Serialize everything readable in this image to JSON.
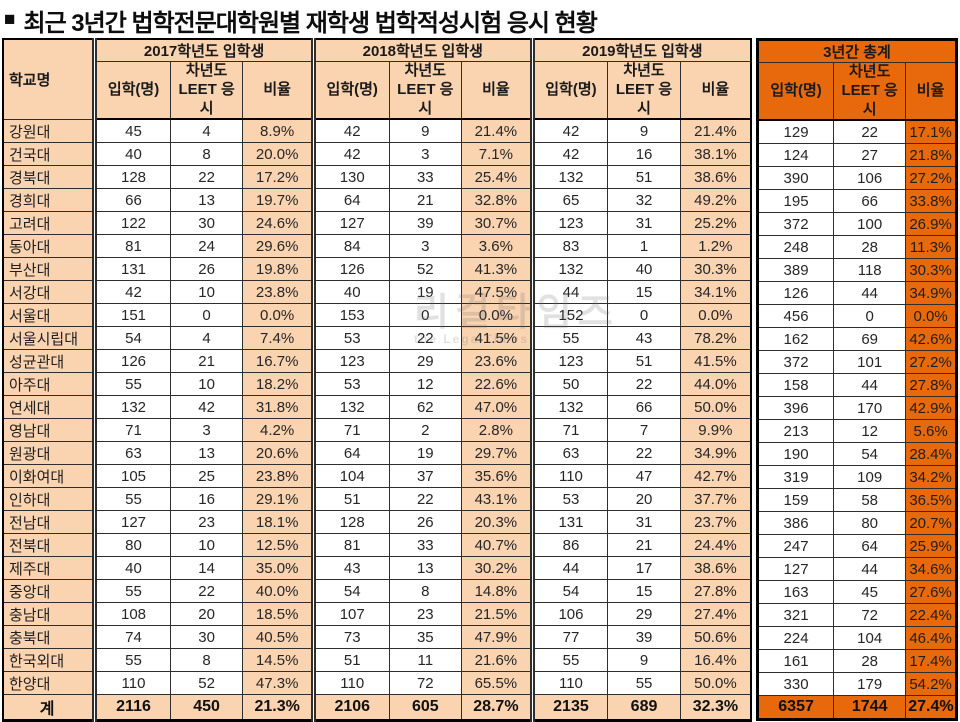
{
  "title": {
    "bullet": "■",
    "text": "최근 3년간 법학전문대학원별 재학생 법학적성시험 응시 현황"
  },
  "colors": {
    "peach": "#FAD3B0",
    "orange": "#E8690B",
    "grid": "#2e2e2e"
  },
  "watermark": {
    "text": "리걸타임즈",
    "subtext": "the LegalTimes"
  },
  "table": {
    "school_col_header": "학교명",
    "sections": [
      {
        "label": "2017학년도 입학생",
        "subheaders": [
          "입학(명)",
          "차년도 LEET 응시",
          "비율"
        ]
      },
      {
        "label": "2018학년도 입학생",
        "subheaders": [
          "입학(명)",
          "차년도 LEET 응시",
          "비율"
        ]
      },
      {
        "label": "2019학년도 입학생",
        "subheaders": [
          "입학(명)",
          "차년도 LEET 응시",
          "비율"
        ]
      },
      {
        "label": "3년간 총계",
        "subheaders": [
          "입학(명)",
          "차년도 LEET 응시",
          "비율"
        ]
      }
    ],
    "rows": [
      {
        "school": "강원대",
        "y2017": [
          "45",
          "4",
          "8.9%"
        ],
        "y2018": [
          "42",
          "9",
          "21.4%"
        ],
        "y2019": [
          "42",
          "9",
          "21.4%"
        ],
        "total": [
          "129",
          "22",
          "17.1%"
        ]
      },
      {
        "school": "건국대",
        "y2017": [
          "40",
          "8",
          "20.0%"
        ],
        "y2018": [
          "42",
          "3",
          "7.1%"
        ],
        "y2019": [
          "42",
          "16",
          "38.1%"
        ],
        "total": [
          "124",
          "27",
          "21.8%"
        ]
      },
      {
        "school": "경북대",
        "y2017": [
          "128",
          "22",
          "17.2%"
        ],
        "y2018": [
          "130",
          "33",
          "25.4%"
        ],
        "y2019": [
          "132",
          "51",
          "38.6%"
        ],
        "total": [
          "390",
          "106",
          "27.2%"
        ]
      },
      {
        "school": "경희대",
        "y2017": [
          "66",
          "13",
          "19.7%"
        ],
        "y2018": [
          "64",
          "21",
          "32.8%"
        ],
        "y2019": [
          "65",
          "32",
          "49.2%"
        ],
        "total": [
          "195",
          "66",
          "33.8%"
        ]
      },
      {
        "school": "고려대",
        "y2017": [
          "122",
          "30",
          "24.6%"
        ],
        "y2018": [
          "127",
          "39",
          "30.7%"
        ],
        "y2019": [
          "123",
          "31",
          "25.2%"
        ],
        "total": [
          "372",
          "100",
          "26.9%"
        ]
      },
      {
        "school": "동아대",
        "y2017": [
          "81",
          "24",
          "29.6%"
        ],
        "y2018": [
          "84",
          "3",
          "3.6%"
        ],
        "y2019": [
          "83",
          "1",
          "1.2%"
        ],
        "total": [
          "248",
          "28",
          "11.3%"
        ]
      },
      {
        "school": "부산대",
        "y2017": [
          "131",
          "26",
          "19.8%"
        ],
        "y2018": [
          "126",
          "52",
          "41.3%"
        ],
        "y2019": [
          "132",
          "40",
          "30.3%"
        ],
        "total": [
          "389",
          "118",
          "30.3%"
        ]
      },
      {
        "school": "서강대",
        "y2017": [
          "42",
          "10",
          "23.8%"
        ],
        "y2018": [
          "40",
          "19",
          "47.5%"
        ],
        "y2019": [
          "44",
          "15",
          "34.1%"
        ],
        "total": [
          "126",
          "44",
          "34.9%"
        ]
      },
      {
        "school": "서울대",
        "y2017": [
          "151",
          "0",
          "0.0%"
        ],
        "y2018": [
          "153",
          "0",
          "0.0%"
        ],
        "y2019": [
          "152",
          "0",
          "0.0%"
        ],
        "total": [
          "456",
          "0",
          "0.0%"
        ]
      },
      {
        "school": "서울시립대",
        "y2017": [
          "54",
          "4",
          "7.4%"
        ],
        "y2018": [
          "53",
          "22",
          "41.5%"
        ],
        "y2019": [
          "55",
          "43",
          "78.2%"
        ],
        "total": [
          "162",
          "69",
          "42.6%"
        ]
      },
      {
        "school": "성균관대",
        "y2017": [
          "126",
          "21",
          "16.7%"
        ],
        "y2018": [
          "123",
          "29",
          "23.6%"
        ],
        "y2019": [
          "123",
          "51",
          "41.5%"
        ],
        "total": [
          "372",
          "101",
          "27.2%"
        ]
      },
      {
        "school": "아주대",
        "y2017": [
          "55",
          "10",
          "18.2%"
        ],
        "y2018": [
          "53",
          "12",
          "22.6%"
        ],
        "y2019": [
          "50",
          "22",
          "44.0%"
        ],
        "total": [
          "158",
          "44",
          "27.8%"
        ]
      },
      {
        "school": "연세대",
        "y2017": [
          "132",
          "42",
          "31.8%"
        ],
        "y2018": [
          "132",
          "62",
          "47.0%"
        ],
        "y2019": [
          "132",
          "66",
          "50.0%"
        ],
        "total": [
          "396",
          "170",
          "42.9%"
        ]
      },
      {
        "school": "영남대",
        "y2017": [
          "71",
          "3",
          "4.2%"
        ],
        "y2018": [
          "71",
          "2",
          "2.8%"
        ],
        "y2019": [
          "71",
          "7",
          "9.9%"
        ],
        "total": [
          "213",
          "12",
          "5.6%"
        ]
      },
      {
        "school": "원광대",
        "y2017": [
          "63",
          "13",
          "20.6%"
        ],
        "y2018": [
          "64",
          "19",
          "29.7%"
        ],
        "y2019": [
          "63",
          "22",
          "34.9%"
        ],
        "total": [
          "190",
          "54",
          "28.4%"
        ]
      },
      {
        "school": "이화여대",
        "y2017": [
          "105",
          "25",
          "23.8%"
        ],
        "y2018": [
          "104",
          "37",
          "35.6%"
        ],
        "y2019": [
          "110",
          "47",
          "42.7%"
        ],
        "total": [
          "319",
          "109",
          "34.2%"
        ]
      },
      {
        "school": "인하대",
        "y2017": [
          "55",
          "16",
          "29.1%"
        ],
        "y2018": [
          "51",
          "22",
          "43.1%"
        ],
        "y2019": [
          "53",
          "20",
          "37.7%"
        ],
        "total": [
          "159",
          "58",
          "36.5%"
        ]
      },
      {
        "school": "전남대",
        "y2017": [
          "127",
          "23",
          "18.1%"
        ],
        "y2018": [
          "128",
          "26",
          "20.3%"
        ],
        "y2019": [
          "131",
          "31",
          "23.7%"
        ],
        "total": [
          "386",
          "80",
          "20.7%"
        ]
      },
      {
        "school": "전북대",
        "y2017": [
          "80",
          "10",
          "12.5%"
        ],
        "y2018": [
          "81",
          "33",
          "40.7%"
        ],
        "y2019": [
          "86",
          "21",
          "24.4%"
        ],
        "total": [
          "247",
          "64",
          "25.9%"
        ]
      },
      {
        "school": "제주대",
        "y2017": [
          "40",
          "14",
          "35.0%"
        ],
        "y2018": [
          "43",
          "13",
          "30.2%"
        ],
        "y2019": [
          "44",
          "17",
          "38.6%"
        ],
        "total": [
          "127",
          "44",
          "34.6%"
        ]
      },
      {
        "school": "중앙대",
        "y2017": [
          "55",
          "22",
          "40.0%"
        ],
        "y2018": [
          "54",
          "8",
          "14.8%"
        ],
        "y2019": [
          "54",
          "15",
          "27.8%"
        ],
        "total": [
          "163",
          "45",
          "27.6%"
        ]
      },
      {
        "school": "충남대",
        "y2017": [
          "108",
          "20",
          "18.5%"
        ],
        "y2018": [
          "107",
          "23",
          "21.5%"
        ],
        "y2019": [
          "106",
          "29",
          "27.4%"
        ],
        "total": [
          "321",
          "72",
          "22.4%"
        ]
      },
      {
        "school": "충북대",
        "y2017": [
          "74",
          "30",
          "40.5%"
        ],
        "y2018": [
          "73",
          "35",
          "47.9%"
        ],
        "y2019": [
          "77",
          "39",
          "50.6%"
        ],
        "total": [
          "224",
          "104",
          "46.4%"
        ]
      },
      {
        "school": "한국외대",
        "y2017": [
          "55",
          "8",
          "14.5%"
        ],
        "y2018": [
          "51",
          "11",
          "21.6%"
        ],
        "y2019": [
          "55",
          "9",
          "16.4%"
        ],
        "total": [
          "161",
          "28",
          "17.4%"
        ]
      },
      {
        "school": "한양대",
        "y2017": [
          "110",
          "52",
          "47.3%"
        ],
        "y2018": [
          "110",
          "72",
          "65.5%"
        ],
        "y2019": [
          "110",
          "55",
          "50.0%"
        ],
        "total": [
          "330",
          "179",
          "54.2%"
        ]
      },
      {
        "school": "계",
        "is_sum": true,
        "y2017": [
          "2116",
          "450",
          "21.3%"
        ],
        "y2018": [
          "2106",
          "605",
          "28.7%"
        ],
        "y2019": [
          "2135",
          "689",
          "32.3%"
        ],
        "total": [
          "6357",
          "1744",
          "27.4%"
        ]
      }
    ]
  }
}
